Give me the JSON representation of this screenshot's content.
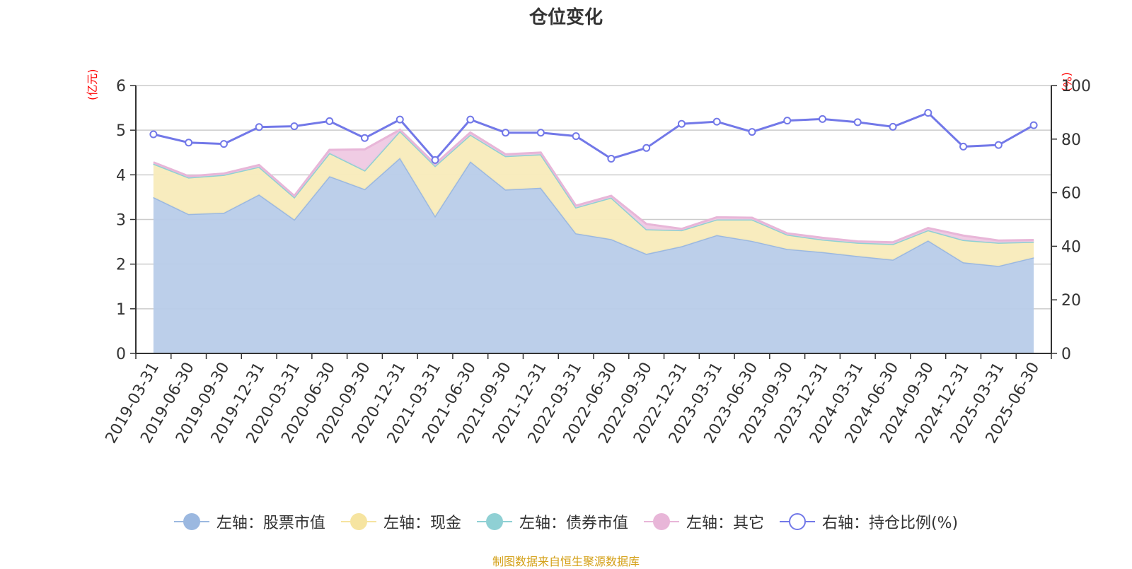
{
  "chart_data": {
    "type": "area",
    "title": "仓位变化",
    "footer": "制图数据来自恒生聚源数据库",
    "left_axis": {
      "unit": "(亿元)",
      "ylim": [
        0,
        6
      ],
      "ticks": [
        "0",
        "1",
        "2",
        "3",
        "4",
        "5",
        "6"
      ]
    },
    "right_axis": {
      "unit": "(%)",
      "ylim": [
        0,
        100
      ],
      "ticks": [
        "0",
        "20",
        "40",
        "60",
        "80",
        "100"
      ]
    },
    "grid": true,
    "legend_position": "bottom",
    "categories": [
      "2019-03-31",
      "2019-06-30",
      "2019-09-30",
      "2019-12-31",
      "2020-03-31",
      "2020-06-30",
      "2020-09-30",
      "2020-12-31",
      "2021-03-31",
      "2021-06-30",
      "2021-09-30",
      "2021-12-31",
      "2022-03-31",
      "2022-06-30",
      "2022-09-30",
      "2022-12-31",
      "2023-03-31",
      "2023-06-30",
      "2023-09-30",
      "2023-12-31",
      "2024-03-31",
      "2024-06-30",
      "2024-09-30",
      "2024-12-31",
      "2025-03-31",
      "2025-06-30"
    ],
    "series": [
      {
        "name": "左轴：股票市值",
        "axis": "left",
        "stacked": true,
        "color": "#9bb8e0",
        "fill": "#b8cce9",
        "values": [
          3.5,
          3.12,
          3.15,
          3.56,
          3.0,
          3.97,
          3.68,
          4.38,
          3.08,
          4.3,
          3.67,
          3.71,
          2.69,
          2.56,
          2.23,
          2.4,
          2.65,
          2.52,
          2.34,
          2.27,
          2.18,
          2.1,
          2.53,
          2.04,
          1.96,
          2.15
        ]
      },
      {
        "name": "左轴：现金",
        "axis": "left",
        "stacked": true,
        "color": "#f6e4a0",
        "fill": "#f8ebbb",
        "values": [
          0.75,
          0.82,
          0.85,
          0.62,
          0.5,
          0.52,
          0.42,
          0.6,
          1.12,
          0.6,
          0.75,
          0.75,
          0.58,
          0.93,
          0.55,
          0.36,
          0.35,
          0.48,
          0.32,
          0.28,
          0.3,
          0.35,
          0.23,
          0.5,
          0.52,
          0.35
        ]
      },
      {
        "name": "左轴：债券市值",
        "axis": "left",
        "stacked": true,
        "color": "#8fd0d4",
        "fill": "#bfe5e7",
        "values": [
          0,
          0,
          0,
          0,
          0,
          0,
          0,
          0,
          0,
          0,
          0,
          0,
          0,
          0,
          0,
          0,
          0,
          0,
          0,
          0,
          0,
          0,
          0,
          0,
          0,
          0
        ]
      },
      {
        "name": "左轴：其它",
        "axis": "left",
        "stacked": true,
        "color": "#e8b6d8",
        "fill": "#efc9e3",
        "values": [
          0.03,
          0.03,
          0.03,
          0.04,
          0.03,
          0.07,
          0.47,
          0.03,
          0.04,
          0.05,
          0.04,
          0.04,
          0.04,
          0.04,
          0.12,
          0.03,
          0.05,
          0.04,
          0.03,
          0.04,
          0.03,
          0.04,
          0.05,
          0.1,
          0.05,
          0.04
        ]
      },
      {
        "name": "右轴：持仓比例(%)",
        "axis": "right",
        "stacked": false,
        "color": "#7278e8",
        "values": [
          81.8,
          78.7,
          78.2,
          84.5,
          84.8,
          86.7,
          80.4,
          87.3,
          72.2,
          87.3,
          82.4,
          82.4,
          81.1,
          72.7,
          76.7,
          85.7,
          86.5,
          82.7,
          86.9,
          87.5,
          86.3,
          84.6,
          89.8,
          77.2,
          77.8,
          85.2
        ]
      }
    ]
  }
}
